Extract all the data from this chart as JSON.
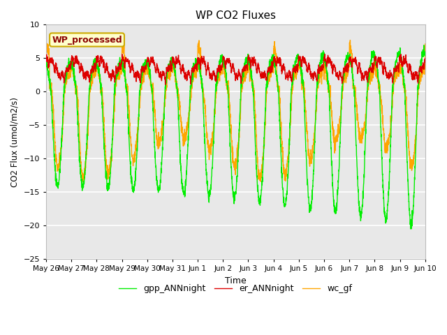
{
  "title": "WP CO2 Fluxes",
  "xlabel": "Time",
  "ylabel_raw": "CO2 Flux (umol/m2/s)",
  "ylim": [
    -25,
    10
  ],
  "yticks": [
    -25,
    -20,
    -15,
    -10,
    -5,
    0,
    5,
    10
  ],
  "xtick_labels": [
    "May 26",
    "May 27",
    "May 28",
    "May 29",
    "May 30",
    "May 31",
    "Jun 1",
    "Jun 2",
    "Jun 3",
    "Jun 4",
    "Jun 5",
    "Jun 6",
    "Jun 7",
    "Jun 8",
    "Jun 9",
    "Jun 10"
  ],
  "color_gpp": "#00ee00",
  "color_er": "#dd0000",
  "color_wc": "#ffa500",
  "legend_labels": [
    "gpp_ANNnight",
    "er_ANNnight",
    "wc_gf"
  ],
  "annotation_text": "WP_processed",
  "annotation_color": "#8b0000",
  "annotation_bg": "#ffffcc",
  "annotation_border": "#ccaa00",
  "plot_bg": "#e8e8e8",
  "fig_bg": "#ffffff",
  "grid_color": "#ffffff",
  "linewidth": 1.0,
  "n_points": 3000
}
